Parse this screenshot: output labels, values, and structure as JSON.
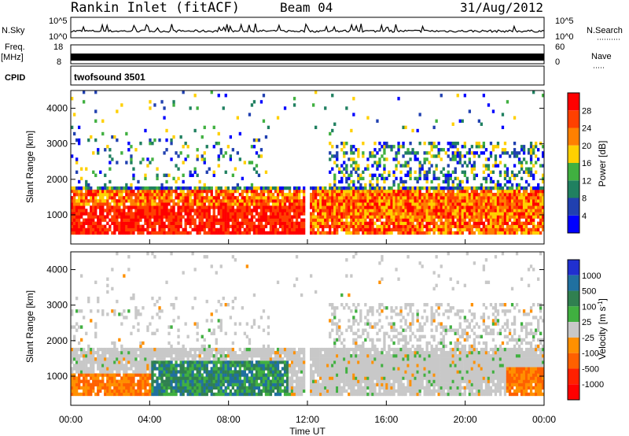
{
  "header": {
    "station": "Rankin Inlet (fitACF)",
    "beam": "Beam 04",
    "date": "31/Aug/2012"
  },
  "left_labels": {
    "nsky": "N.Sky",
    "freq": "Freq.",
    "freq_unit": "[MHz]",
    "cpid": "CPID"
  },
  "right_labels": {
    "nsearch": "N.Search",
    "nave": "Nave"
  },
  "cpid_value": "twofsound 3501",
  "colors": {
    "power_scale": [
      "#0000ff",
      "#2040b0",
      "#208060",
      "#40b040",
      "#ffd000",
      "#ff8000",
      "#ff4000",
      "#ff0000"
    ],
    "velocity_scale": [
      "#2030d0",
      "#2070a0",
      "#308050",
      "#40b040",
      "#c8c8c8",
      "#ff9000",
      "#ff6000",
      "#ff2000",
      "#ff0000"
    ]
  },
  "chart_data": [
    {
      "type": "line",
      "name": "noise-panel",
      "y_left_ticks": [
        "10^5",
        "10^0"
      ],
      "y_right_ticks": [
        "10^5",
        "10^0"
      ],
      "left_label": "N.Sky",
      "right_label": "N.Search"
    },
    {
      "type": "line",
      "name": "freq-panel",
      "y_left_ticks": [
        "18",
        "8"
      ],
      "y_right_ticks": [
        "60",
        "0"
      ],
      "left_label": "Freq. [MHz]",
      "right_label": "Nave"
    },
    {
      "type": "heatmap",
      "name": "power-panel",
      "ylabel": "Slant Range [km]",
      "y_ticks": [
        "1000",
        "2000",
        "3000",
        "4000"
      ],
      "ylim": [
        180,
        4500
      ],
      "xlim": [
        "00:00",
        "24:00"
      ],
      "colorbar_label": "Power [dB]",
      "colorbar_ticks": [
        "4",
        "8",
        "12",
        "16",
        "20",
        "24",
        "28"
      ]
    },
    {
      "type": "heatmap",
      "name": "velocity-panel",
      "ylabel": "Slant Range [km]",
      "y_ticks": [
        "1000",
        "2000",
        "3000",
        "4000"
      ],
      "ylim": [
        180,
        4500
      ],
      "xlim": [
        "00:00",
        "24:00"
      ],
      "xlabel": "Time UT",
      "x_ticks": [
        "00:00",
        "04:00",
        "08:00",
        "12:00",
        "16:00",
        "20:00",
        "00:00"
      ],
      "colorbar_label": "Velocity [m s",
      "colorbar_label_sup": "-1",
      "colorbar_label_end": "]",
      "colorbar_ticks": [
        "1000",
        "500",
        "100",
        "25",
        "-25",
        "-100",
        "-500",
        "-1000"
      ]
    }
  ]
}
